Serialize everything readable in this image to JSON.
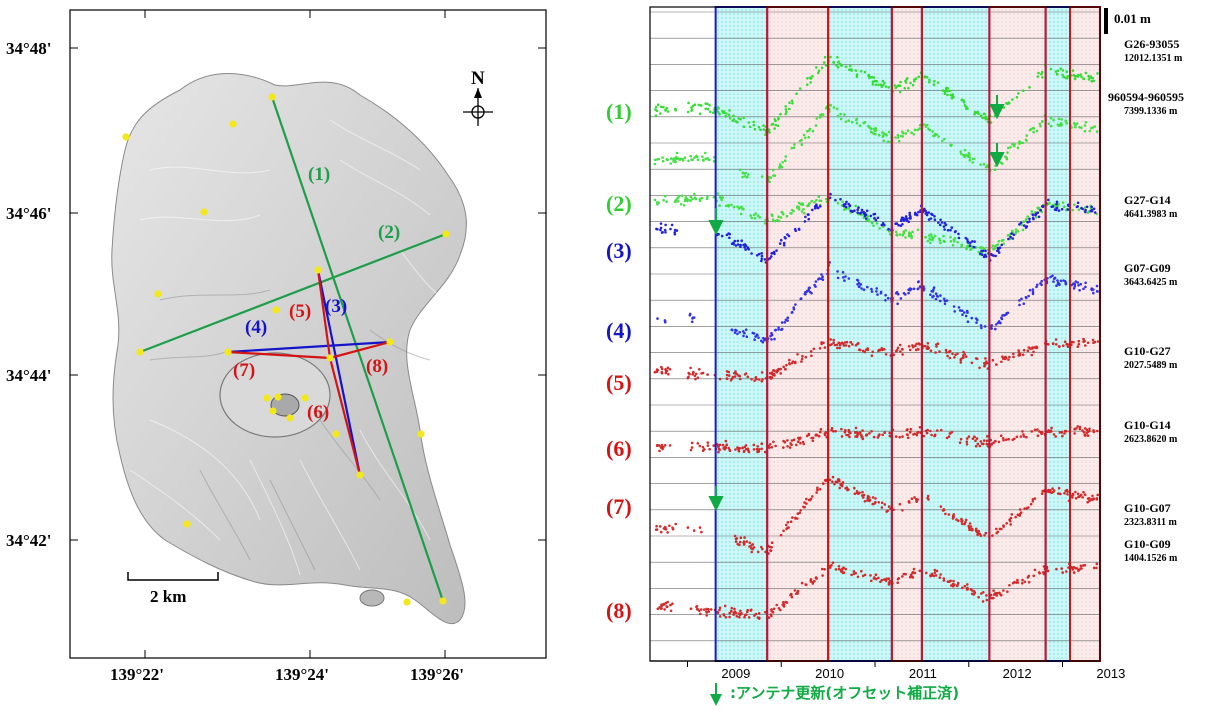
{
  "map": {
    "lat_labels": [
      "34°48'",
      "34°46'",
      "34°44'",
      "34°42'"
    ],
    "lon_labels": [
      "139°22'",
      "139°24'",
      "139°26'"
    ],
    "north_label": "N",
    "scale_label": "2 km",
    "baselines": [
      {
        "label": "(1)",
        "color": "#1e9e4a"
      },
      {
        "label": "(2)",
        "color": "#1e9e4a"
      },
      {
        "label": "(3)",
        "color": "#1414c8"
      },
      {
        "label": "(4)",
        "color": "#1414c8"
      },
      {
        "label": "(5)",
        "color": "#d41414"
      },
      {
        "label": "(6)",
        "color": "#d41414"
      },
      {
        "label": "(7)",
        "color": "#d41414"
      },
      {
        "label": "(8)",
        "color": "#d41414"
      }
    ],
    "station_color": "#f4e81a"
  },
  "chart_data": {
    "type": "scatter",
    "title": "",
    "xlabel": "",
    "ylabel": "",
    "x_ticks": [
      "2009",
      "2010",
      "2011",
      "2012",
      "2013"
    ],
    "scale_bar_label": "0.01 m",
    "inflation_periods": [
      [
        2009.3,
        2009.85
      ],
      [
        2010.5,
        2011.18
      ],
      [
        2011.5,
        2012.22
      ],
      [
        2012.82,
        2013.08
      ]
    ],
    "deflation_periods": [
      [
        2009.85,
        2010.5
      ],
      [
        2011.18,
        2011.5
      ],
      [
        2012.22,
        2012.82
      ],
      [
        2013.08,
        2013.4
      ]
    ],
    "series": [
      {
        "row": "(1)",
        "name": "G26-93055",
        "distance": "12012.1351 m",
        "color": "#33dd33"
      },
      {
        "row": "(1)",
        "name": "960594-960595",
        "distance": "7399.1336 m",
        "color": "#33dd33"
      },
      {
        "row": "(2)",
        "name": "G27-G14",
        "distance": "4641.3983 m",
        "color": "#33dd33"
      },
      {
        "row": "(3)",
        "name": "G07-G09",
        "distance": "3643.6425 m",
        "color": "#1414dd"
      },
      {
        "row": "(4)",
        "name": "G10-G27",
        "distance": "2027.5489 m",
        "color": "#1414dd"
      },
      {
        "row": "(5)",
        "name": "G10-G14",
        "distance": "2623.8620 m",
        "color": "#dd2020"
      },
      {
        "row": "(6)",
        "name": "G10-G07",
        "distance": "2323.8311 m",
        "color": "#dd2020"
      },
      {
        "row": "(7)",
        "name": "G10-G09",
        "distance": "1404.1526 m",
        "color": "#dd2020"
      },
      {
        "row": "(8)",
        "name": "",
        "distance": "",
        "color": "#dd2020"
      }
    ]
  },
  "legend_note": ":アンテナ更新(オフセット補正済)"
}
